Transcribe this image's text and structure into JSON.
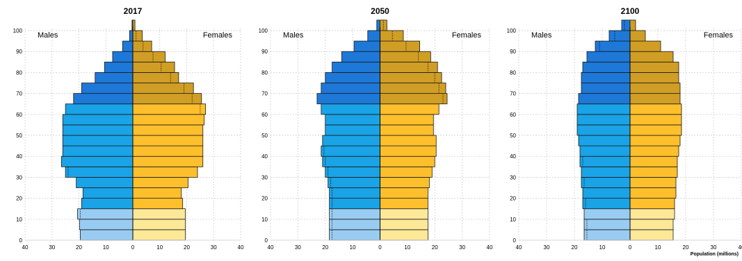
{
  "colors": {
    "males_young": "#99ccf2",
    "males_working": "#1aa3e6",
    "males_old": "#1e78d8",
    "females_young": "#fde898",
    "females_working": "#fdbf2c",
    "females_old": "#d09e24"
  },
  "chart_data": [
    {
      "type": "bar",
      "title": "2017",
      "left_label": "Males",
      "right_label": "Females",
      "x_unit_label": "",
      "age_ticks": [
        "0",
        "10",
        "20",
        "30",
        "40",
        "50",
        "60",
        "70",
        "80",
        "90",
        "100"
      ],
      "x_ticks": [
        "40",
        "30",
        "20",
        "10",
        "0",
        "10",
        "20",
        "30",
        "40"
      ],
      "age_groups": [
        "0-4",
        "5-9",
        "10-14",
        "15-19",
        "20-24",
        "25-29",
        "30-34",
        "35-39",
        "40-44",
        "45-49",
        "50-54",
        "55-59",
        "60-64",
        "65-69",
        "70-74",
        "75-79",
        "80-84",
        "85-89",
        "90-94",
        "95-99",
        "100+"
      ],
      "males": [
        19.5,
        19.8,
        20.5,
        19,
        18.5,
        21,
        25,
        26.5,
        26,
        26,
        26,
        26,
        25,
        22,
        19,
        14,
        10.5,
        7.5,
        3.8,
        1.2,
        0.3
      ],
      "females": [
        19.5,
        19.5,
        19.5,
        18.5,
        18,
        20.5,
        24,
        26,
        26,
        26,
        26,
        26.5,
        27,
        25.5,
        22.5,
        17,
        15.5,
        12,
        7,
        3.5,
        0.8
      ]
    },
    {
      "type": "bar",
      "title": "2050",
      "left_label": "Males",
      "right_label": "Females",
      "x_unit_label": "",
      "age_ticks": [
        "0",
        "10",
        "20",
        "30",
        "40",
        "50",
        "60",
        "70",
        "80",
        "90",
        "100"
      ],
      "x_ticks": [
        "40",
        "30",
        "20",
        "10",
        "0",
        "10",
        "20",
        "30",
        "40"
      ],
      "age_groups": [
        "0-4",
        "5-9",
        "10-14",
        "15-19",
        "20-24",
        "25-29",
        "30-34",
        "35-39",
        "40-44",
        "45-49",
        "50-54",
        "55-59",
        "60-64",
        "65-69",
        "70-74",
        "75-79",
        "80-84",
        "85-89",
        "90-94",
        "95-99",
        "100+"
      ],
      "males": [
        18.5,
        18.5,
        18.5,
        18.5,
        18.5,
        19,
        20,
        21,
        21.5,
        21,
        20,
        20,
        21.5,
        23,
        21.5,
        20,
        17.5,
        14,
        9.5,
        4.5,
        1.2
      ],
      "females": [
        17.5,
        17.5,
        17.5,
        17.5,
        17.5,
        18,
        19,
        20,
        20.5,
        20.5,
        19.5,
        19.5,
        21.5,
        24.5,
        24,
        22.5,
        21,
        18.5,
        14.5,
        8.5,
        2.5
      ]
    },
    {
      "type": "bar",
      "title": "2100",
      "left_label": "Males",
      "right_label": "Females",
      "x_unit_label": "Population (millions)",
      "age_ticks": [
        "0",
        "10",
        "20",
        "30",
        "40",
        "50",
        "60",
        "70",
        "80",
        "90",
        "100"
      ],
      "x_ticks": [
        "40",
        "30",
        "20",
        "10",
        "0",
        "10",
        "20",
        "30",
        "40"
      ],
      "age_groups": [
        "0-4",
        "5-9",
        "10-14",
        "15-19",
        "20-24",
        "25-29",
        "30-34",
        "35-39",
        "40-44",
        "45-49",
        "50-54",
        "55-59",
        "60-64",
        "65-69",
        "70-74",
        "75-79",
        "80-84",
        "85-89",
        "90-94",
        "95-99",
        "100+"
      ],
      "males": [
        16.5,
        16.5,
        16.5,
        17,
        17,
        17.5,
        17.5,
        18,
        18,
        18.5,
        19,
        19,
        19,
        18.5,
        17.5,
        17.5,
        17,
        15.5,
        12.5,
        7.5,
        3
      ],
      "females": [
        15.5,
        15.5,
        16,
        16,
        16.5,
        16.5,
        17,
        17,
        17.5,
        18,
        18.5,
        18.5,
        18.5,
        18,
        18,
        17.5,
        17.5,
        15.5,
        11,
        5.5,
        2
      ]
    }
  ]
}
